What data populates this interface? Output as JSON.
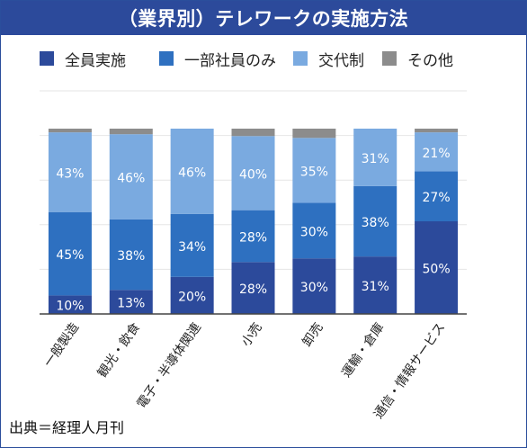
{
  "title": "（業界別）テレワークの実施方法",
  "source": "出典＝経理人月刊",
  "chart_data": {
    "type": "bar",
    "stacked": true,
    "categories": [
      "一般製造",
      "観光・飲食",
      "電子・半導体関連",
      "小売",
      "卸売",
      "運輸・倉庫",
      "通信・情報サービス"
    ],
    "series": [
      {
        "name": "全員実施",
        "color": "#2c4a9b",
        "values": [
          10,
          13,
          20,
          28,
          30,
          31,
          50
        ],
        "labels": [
          "10%",
          "13%",
          "20%",
          "28%",
          "30%",
          "31%",
          "50%"
        ]
      },
      {
        "name": "一部社員のみ",
        "color": "#2e70c0",
        "values": [
          45,
          38,
          34,
          28,
          30,
          38,
          27
        ],
        "labels": [
          "45%",
          "38%",
          "34%",
          "28%",
          "30%",
          "38%",
          "27%"
        ]
      },
      {
        "name": "交代制",
        "color": "#7aaae0",
        "values": [
          43,
          46,
          46,
          40,
          35,
          31,
          21
        ],
        "labels": [
          "43%",
          "46%",
          "46%",
          "40%",
          "35%",
          "31%",
          "21%"
        ]
      },
      {
        "name": "その他",
        "color": "#8c8c8c",
        "values": [
          2,
          3,
          0,
          4,
          5,
          0,
          2
        ],
        "labels": [
          "",
          "",
          "",
          "",
          "",
          "",
          ""
        ]
      }
    ],
    "ylim": [
      0,
      100
    ],
    "grid": true,
    "legend_position": "top"
  }
}
